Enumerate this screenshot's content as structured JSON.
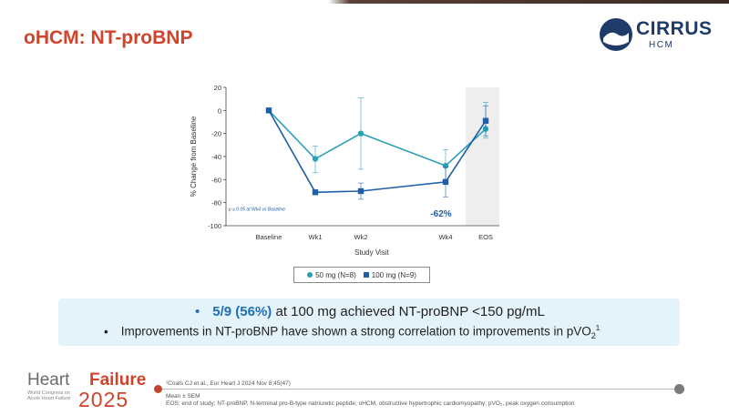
{
  "slide": {
    "title": "oHCM: NT-proBNP"
  },
  "logo": {
    "word": "CIRRUS",
    "sub": "HCM"
  },
  "chart_data": {
    "type": "line",
    "x": [
      "Baseline",
      "Wk1",
      "Wk2",
      "Wk4",
      "EOS"
    ],
    "xlabel": "Study Visit",
    "ylabel": "% Change from Baseline",
    "ylim": [
      -100,
      20
    ],
    "yticks": [
      20,
      0,
      -20,
      -40,
      -60,
      -80,
      -100
    ],
    "grid": false,
    "legend_position": "bottom",
    "series": [
      {
        "name": "50 mg (N=8)",
        "marker": "circle",
        "color": "#2aa0b8",
        "values": [
          0,
          -42,
          -20,
          -48,
          -16
        ],
        "error_low": [
          0,
          -54,
          -51,
          -60,
          -24
        ],
        "error_high": [
          0,
          -31,
          11,
          -34,
          7
        ]
      },
      {
        "name": "100 mg (N=9)",
        "marker": "square",
        "color": "#1f5fa8",
        "values": [
          0,
          -71,
          -70,
          -62,
          -9
        ],
        "error_low": [
          0,
          -71,
          -77,
          -75,
          -22
        ],
        "error_high": [
          0,
          -71,
          -63,
          -49,
          4
        ]
      }
    ],
    "annotations": {
      "p_note": "p ≤ 0.05 at Wk4 vs Baseline",
      "wk4_label": "-62%"
    },
    "shaded_region": "EOS"
  },
  "summary": {
    "bullet1_highlight": "5/9 (56%)",
    "bullet1_rest": " at 100 mg achieved NT-proBNP <150 pg/mL",
    "bullet2_text": "Improvements in NT-proBNP have shown a strong correlation to improvements in pVO",
    "bullet2_sub": "2",
    "bullet2_sup": "1"
  },
  "footer": {
    "brand_heart": "Heart",
    "brand_failure": "Failure",
    "brand_year": "2025",
    "brand_sub": "World Congress on Acute Heart Failure",
    "reference": "¹Coats CJ et al., Eur Heart J 2024 Nov 8;45(47)",
    "mean_note": "Mean ± SEM",
    "abbrev": "EOS: end of study; NT-proBNP, N-terminal pro-B-type natriuretic peptide; oHCM, obstructive hypertrophic cardiomyopathy; pVO₂, peak oxygen consumption"
  },
  "colors": {
    "title": "#d2432c",
    "series_50mg": "#2aa0b8",
    "series_100mg": "#1f5fa8",
    "panel_bg": "#e3f3f9",
    "highlight": "#1f6fb5"
  }
}
